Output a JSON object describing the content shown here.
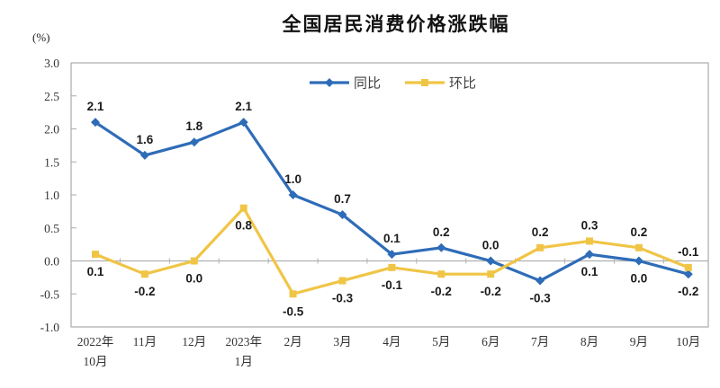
{
  "chart_data": {
    "type": "line",
    "title": "全国居民消费价格涨跌幅",
    "ylabel": "(%)",
    "xlabel": "",
    "legend_position": "top-center",
    "grid": false,
    "categories": [
      "2022年\n10月",
      "11月",
      "12月",
      "2023年\n1月",
      "2月",
      "3月",
      "4月",
      "5月",
      "6月",
      "7月",
      "8月",
      "9月",
      "10月"
    ],
    "axis": {
      "ymin": -1.0,
      "ymax": 3.0,
      "ystep": 0.5,
      "y_tick_labels": [
        "3.0",
        "2.5",
        "2.0",
        "1.5",
        "1.0",
        "0.5",
        "0.0",
        "-0.5",
        "-1.0"
      ],
      "zero_line": true
    },
    "series": [
      {
        "name": "同比",
        "color": "#2e6cb8",
        "marker": "diamond",
        "values": [
          2.1,
          1.6,
          1.8,
          2.1,
          1.0,
          0.7,
          0.1,
          0.2,
          0.0,
          -0.3,
          0.1,
          0.0,
          -0.2
        ],
        "labels": [
          "2.1",
          "1.6",
          "1.8",
          "2.1",
          "1.0",
          "0.7",
          "0.1",
          "0.2",
          "0.0",
          "-0.3",
          "0.1",
          "0.0",
          "-0.2"
        ],
        "label_positions": [
          "above",
          "above",
          "above",
          "above",
          "above",
          "above",
          "above",
          "above",
          "above",
          "below",
          "below",
          "below",
          "below"
        ]
      },
      {
        "name": "环比",
        "color": "#f0c546",
        "marker": "square",
        "values": [
          0.1,
          -0.2,
          0.0,
          0.8,
          -0.5,
          -0.3,
          -0.1,
          -0.2,
          -0.2,
          0.2,
          0.3,
          0.2,
          -0.1
        ],
        "labels": [
          "0.1",
          "-0.2",
          "0.0",
          "0.8",
          "-0.5",
          "-0.3",
          "-0.1",
          "-0.2",
          "-0.2",
          "0.2",
          "0.3",
          "0.2",
          "-0.1"
        ],
        "label_positions": [
          "below",
          "below",
          "below",
          "below",
          "below",
          "below",
          "below",
          "below",
          "below",
          "above",
          "above",
          "above",
          "above"
        ]
      }
    ],
    "colors": {
      "plot_border": "#ababab",
      "zero_line": "#b0b0b0",
      "axis_text": "#333333",
      "label_text": "#1b1b1b",
      "legend_text": "#404040"
    }
  }
}
